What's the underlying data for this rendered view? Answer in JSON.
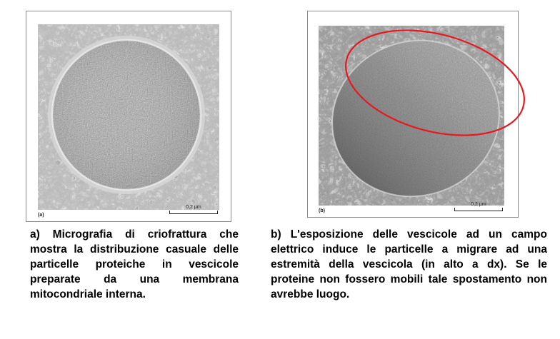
{
  "panel_a": {
    "label": "(a)",
    "scale": "0,2 μm",
    "caption": "a) Micrografia di criofrattura che mostra la distribuzione casuale delle particelle proteiche in vescicole preparate da una membrana mitocondriale interna."
  },
  "panel_b": {
    "label": "(b)",
    "scale": "0,2 μm",
    "caption": "b) L'esposizione delle vescicole ad un campo elettrico induce le particelle a migrare ad una estremità della vescicola (in alto a dx). Se le proteine non fossero mobili tale spostamento non avrebbe luogo."
  },
  "colors": {
    "highlight": "#e8191e",
    "panel_border": "#8a8a8a"
  }
}
